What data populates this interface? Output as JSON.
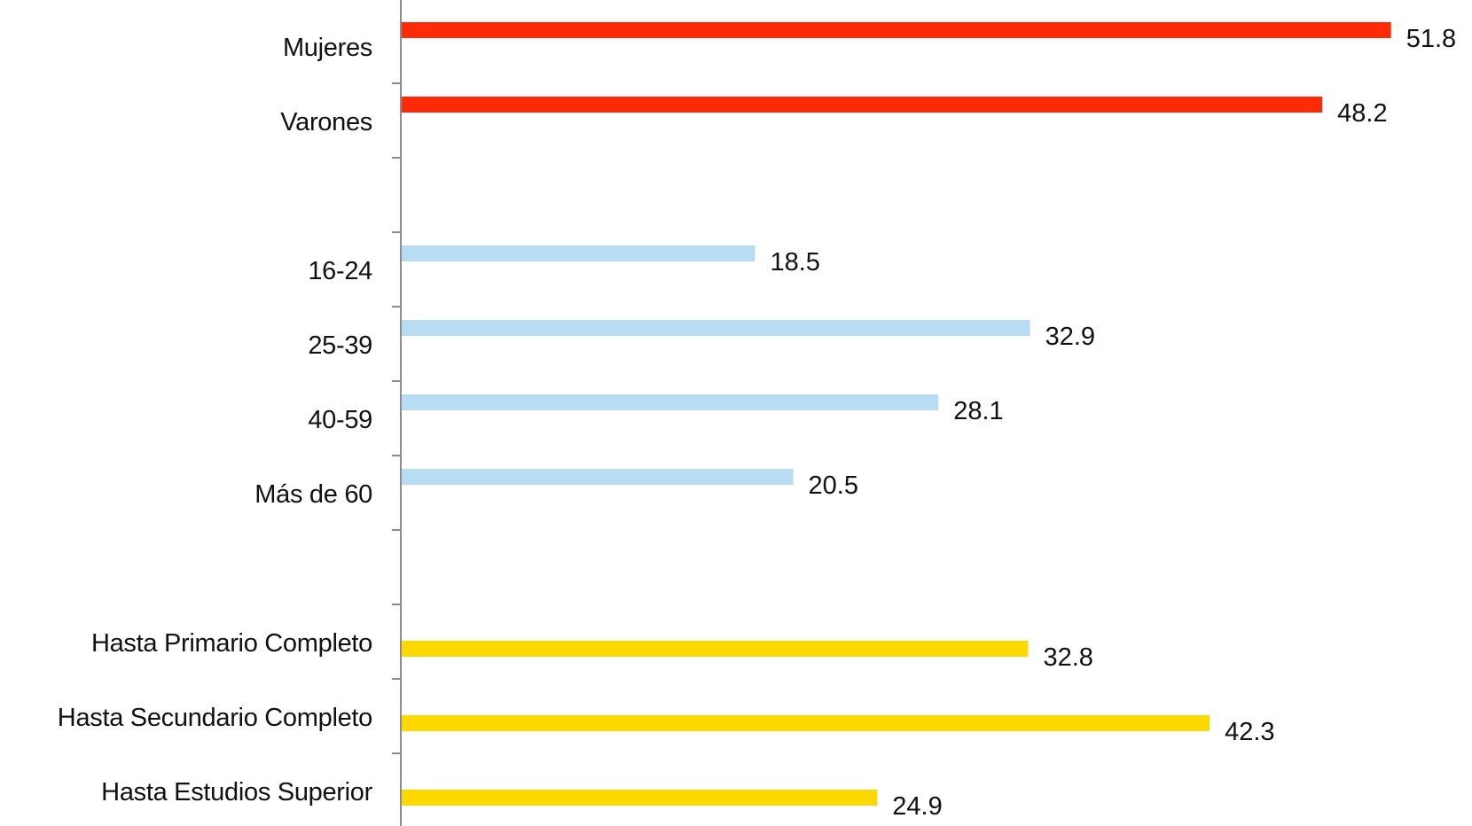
{
  "colors": {
    "gender": "#ff2a08",
    "age": "#b9dcf5",
    "education": "#fdd900",
    "axis": "#8c8c8c",
    "text": "#111111"
  },
  "chart_data": {
    "type": "bar",
    "orientation": "horizontal",
    "title": "",
    "xlabel": "",
    "ylabel": "",
    "xlim": [
      0,
      52
    ],
    "grid": false,
    "legend": "none",
    "rows": [
      {
        "label": "Mujeres",
        "value": 51.8,
        "group": "gender"
      },
      {
        "label": "Varones",
        "value": 48.2,
        "group": "gender"
      },
      {
        "label": "",
        "value": null,
        "group": "gap"
      },
      {
        "label": "16-24",
        "value": 18.5,
        "group": "age"
      },
      {
        "label": "25-39",
        "value": 32.9,
        "group": "age"
      },
      {
        "label": "40-59",
        "value": 28.1,
        "group": "age"
      },
      {
        "label": "Más de 60",
        "value": 20.5,
        "group": "age"
      },
      {
        "label": "",
        "value": null,
        "group": "gap"
      },
      {
        "label": "Hasta Primario Completo",
        "value": 32.8,
        "group": "education"
      },
      {
        "label": "Hasta Secundario Completo",
        "value": 42.3,
        "group": "education"
      },
      {
        "label": "Hasta Estudios Superior",
        "value": 24.9,
        "group": "education"
      }
    ]
  }
}
